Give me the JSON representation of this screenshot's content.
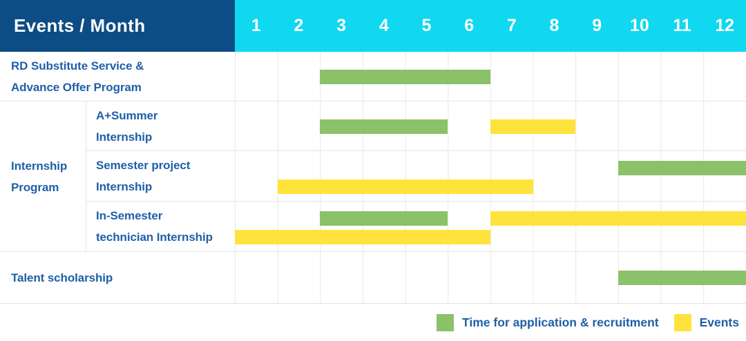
{
  "header": {
    "title": "Events / Month",
    "months": [
      "1",
      "2",
      "3",
      "4",
      "5",
      "6",
      "7",
      "8",
      "9",
      "10",
      "11",
      "12"
    ]
  },
  "colors": {
    "navy": "#0C4D86",
    "cyan": "#0FD8F0",
    "application": "#8BC269",
    "event": "#FFE33D",
    "label_blue": "#1F5FA8",
    "grid_line": "#E8E8E8"
  },
  "groups": {
    "internship": {
      "line1": "Internship",
      "line2": "Program"
    }
  },
  "rows": [
    {
      "line1": "RD Substitute Service &",
      "line2": "Advance Offer Program",
      "bars": [
        {
          "type": "application",
          "start_month": 3,
          "end_month": 6,
          "lane": "center"
        }
      ]
    },
    {
      "line1": "A+Summer",
      "line2": "Internship",
      "bars": [
        {
          "type": "application",
          "start_month": 3,
          "end_month": 5,
          "lane": "center"
        },
        {
          "type": "event",
          "start_month": 7,
          "end_month": 8,
          "lane": "center"
        }
      ]
    },
    {
      "line1": "Semester project",
      "line2": "Internship",
      "bars": [
        {
          "type": "application",
          "start_month": 10,
          "end_month": 12,
          "lane": "top"
        },
        {
          "type": "event",
          "start_month": 2,
          "end_month": 7,
          "lane": "bottom"
        }
      ]
    },
    {
      "line1": "In-Semester",
      "line2": "technician Internship",
      "bars": [
        {
          "type": "application",
          "start_month": 3,
          "end_month": 5,
          "lane": "top"
        },
        {
          "type": "event",
          "start_month": 7,
          "end_month": 12,
          "lane": "top"
        },
        {
          "type": "event",
          "start_month": 1,
          "end_month": 6,
          "lane": "bottom"
        }
      ]
    },
    {
      "line1": "Talent scholarship",
      "bars": [
        {
          "type": "application",
          "start_month": 10,
          "end_month": 12,
          "lane": "center"
        }
      ]
    }
  ],
  "legend": {
    "items": [
      {
        "type": "application",
        "label": "Time for application & recruitment"
      },
      {
        "type": "event",
        "label": "Events"
      }
    ]
  },
  "chart_data": {
    "type": "gantt",
    "title": "Events / Month",
    "x_axis": {
      "unit": "month",
      "ticks": [
        1,
        2,
        3,
        4,
        5,
        6,
        7,
        8,
        9,
        10,
        11,
        12
      ],
      "range": [
        1,
        12
      ]
    },
    "legend_entries": [
      "Time for application & recruitment",
      "Events"
    ],
    "legend_position": "bottom-right",
    "grid": true,
    "tasks": [
      {
        "name": "RD Substitute Service & Advance Offer Program",
        "group": null,
        "bars": [
          {
            "series": "Time for application & recruitment",
            "start_month": 3,
            "end_month": 6
          }
        ]
      },
      {
        "name": "A+Summer Internship",
        "group": "Internship Program",
        "bars": [
          {
            "series": "Time for application & recruitment",
            "start_month": 3,
            "end_month": 5
          },
          {
            "series": "Events",
            "start_month": 7,
            "end_month": 8
          }
        ]
      },
      {
        "name": "Semester project Internship",
        "group": "Internship Program",
        "bars": [
          {
            "series": "Time for application & recruitment",
            "start_month": 10,
            "end_month": 12
          },
          {
            "series": "Events",
            "start_month": 2,
            "end_month": 7
          }
        ]
      },
      {
        "name": "In-Semester technician Internship",
        "group": "Internship Program",
        "bars": [
          {
            "series": "Time for application & recruitment",
            "start_month": 3,
            "end_month": 5
          },
          {
            "series": "Events",
            "start_month": 7,
            "end_month": 12
          },
          {
            "series": "Events",
            "start_month": 1,
            "end_month": 6
          }
        ]
      },
      {
        "name": "Talent scholarship",
        "group": null,
        "bars": [
          {
            "series": "Time for application & recruitment",
            "start_month": 10,
            "end_month": 12
          }
        ]
      }
    ]
  }
}
